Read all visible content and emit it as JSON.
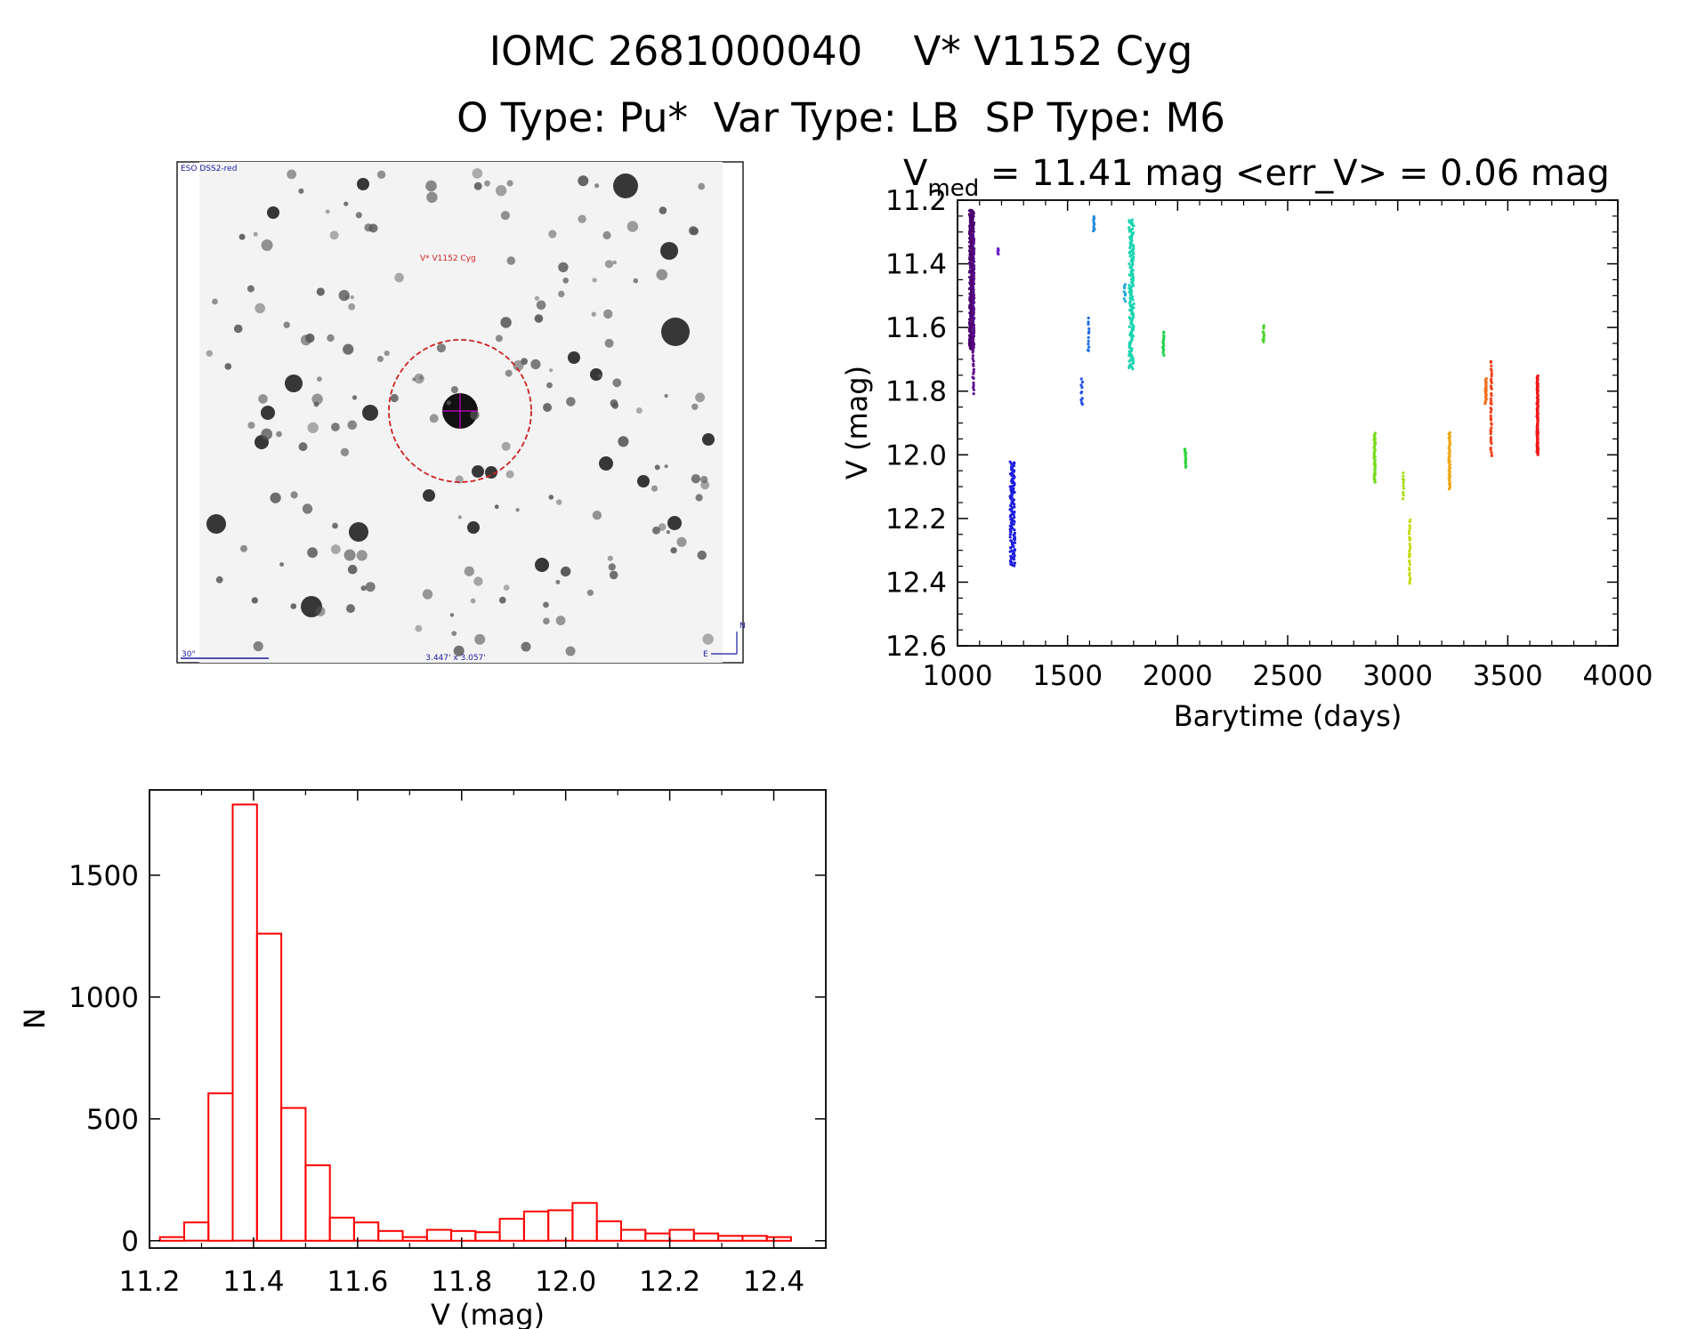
{
  "header": {
    "title_line1": "IOMC 2681000040    V* V1152 Cyg",
    "title_line2": "O Type: Pu*  Var Type: LB  SP Type: M6"
  },
  "finder": {
    "survey_label": "ESO DSS2-red",
    "target_label": "V* V1152 Cyg",
    "scale_label": "30\"",
    "fov_label": "3.447' x 3.057'",
    "north_label": "N",
    "east_label": "E"
  },
  "lightcurve": {
    "stat_prefix": "V",
    "stat_sub": "med",
    "stat_text": " = 11.41 mag <err_V> = 0.06 mag",
    "xlabel": "Barytime (days)",
    "ylabel": "V (mag)"
  },
  "chart_data": [
    {
      "type": "scatter",
      "title": "Vmed = 11.41 mag <err_V> = 0.06 mag",
      "xlabel": "Barytime (days)",
      "ylabel": "V (mag)",
      "xlim": [
        1000,
        4000
      ],
      "ylim": [
        11.2,
        12.6
      ],
      "y_inverted": true,
      "xticks": [
        1000,
        1500,
        2000,
        2500,
        3000,
        3500,
        4000
      ],
      "yticks": [
        "11.2",
        "11.4",
        "11.6",
        "11.8",
        "12.0",
        "12.2",
        "12.4",
        "12.6"
      ],
      "groups": [
        {
          "x": 1065,
          "y_min": 11.23,
          "y_max": 11.67,
          "n": 300,
          "color": "#4b006e"
        },
        {
          "x": 1072,
          "y_min": 11.3,
          "y_max": 11.81,
          "n": 60,
          "color": "#5a0a8c"
        },
        {
          "x": 1185,
          "y_min": 11.35,
          "y_max": 11.37,
          "n": 6,
          "color": "#6a1fcf"
        },
        {
          "x": 1250,
          "y_min": 12.02,
          "y_max": 12.35,
          "n": 120,
          "color": "#1c1ce0"
        },
        {
          "x": 1565,
          "y_min": 11.76,
          "y_max": 11.85,
          "n": 10,
          "color": "#2050e8"
        },
        {
          "x": 1595,
          "y_min": 11.57,
          "y_max": 11.68,
          "n": 12,
          "color": "#1e6ee8"
        },
        {
          "x": 1620,
          "y_min": 11.25,
          "y_max": 11.3,
          "n": 10,
          "color": "#1e8ad8"
        },
        {
          "x": 1760,
          "y_min": 11.46,
          "y_max": 11.52,
          "n": 8,
          "color": "#20a8d8"
        },
        {
          "x": 1790,
          "y_min": 11.26,
          "y_max": 11.73,
          "n": 160,
          "color": "#19d4b0"
        },
        {
          "x": 1935,
          "y_min": 11.61,
          "y_max": 11.69,
          "n": 14,
          "color": "#22d24a"
        },
        {
          "x": 2035,
          "y_min": 11.98,
          "y_max": 12.04,
          "n": 14,
          "color": "#2fd43a"
        },
        {
          "x": 2390,
          "y_min": 11.59,
          "y_max": 11.65,
          "n": 10,
          "color": "#4ad428"
        },
        {
          "x": 2895,
          "y_min": 11.93,
          "y_max": 12.09,
          "n": 40,
          "color": "#74dc1a"
        },
        {
          "x": 3025,
          "y_min": 12.05,
          "y_max": 12.14,
          "n": 10,
          "color": "#a6dc12"
        },
        {
          "x": 3055,
          "y_min": 12.2,
          "y_max": 12.41,
          "n": 28,
          "color": "#c4dc10"
        },
        {
          "x": 3235,
          "y_min": 11.93,
          "y_max": 12.11,
          "n": 50,
          "color": "#f0a818"
        },
        {
          "x": 3400,
          "y_min": 11.76,
          "y_max": 11.84,
          "n": 24,
          "color": "#f07020"
        },
        {
          "x": 3425,
          "y_min": 11.7,
          "y_max": 12.01,
          "n": 40,
          "color": "#f04018"
        },
        {
          "x": 3635,
          "y_min": 11.75,
          "y_max": 12.0,
          "n": 100,
          "color": "#f01818"
        }
      ]
    },
    {
      "type": "bar",
      "style": "histogram",
      "xlabel": "V (mag)",
      "ylabel": "N",
      "xlim": [
        11.2,
        12.5
      ],
      "ylim": [
        -30,
        1850
      ],
      "xticks": [
        "11.2",
        "11.4",
        "11.6",
        "11.8",
        "12.0",
        "12.2",
        "12.4"
      ],
      "yticks": [
        "0",
        "500",
        "1000",
        "1500"
      ],
      "bin_start": 11.22,
      "bin_width": 0.04666,
      "values": [
        15,
        75,
        605,
        1790,
        1260,
        545,
        310,
        95,
        75,
        40,
        15,
        45,
        40,
        35,
        90,
        120,
        125,
        155,
        80,
        45,
        30,
        45,
        30,
        20,
        20,
        15
      ],
      "color": "#ff0000"
    }
  ]
}
